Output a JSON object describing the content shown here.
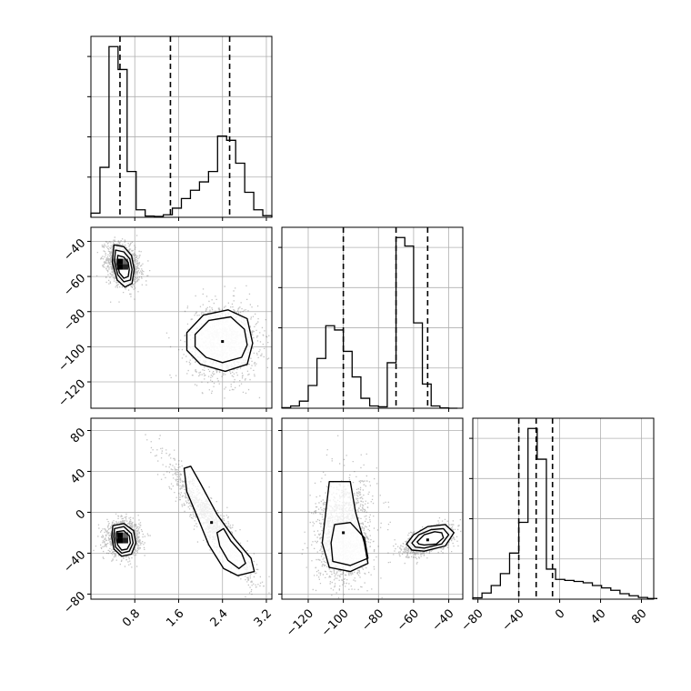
{
  "chart_data": {
    "type": "corner",
    "title": "",
    "parameter_labels": [
      "",
      "",
      ""
    ],
    "grid": true,
    "params": [
      {
        "range": [
          0.0,
          3.3
        ],
        "ticks": [
          0.8,
          1.6,
          2.4,
          3.2
        ],
        "tick_labels": [
          "0.8",
          "1.6",
          "2.4",
          "3.2"
        ],
        "quantiles": [
          0.53,
          1.45,
          2.53
        ],
        "hist": {
          "bin_edges": [
            0.0,
            0.165,
            0.33,
            0.495,
            0.66,
            0.825,
            0.99,
            1.155,
            1.32,
            1.485,
            1.65,
            1.815,
            1.98,
            2.145,
            2.31,
            2.475,
            2.64,
            2.805,
            2.97,
            3.135,
            3.3
          ],
          "counts": [
            10,
            120,
            410,
            355,
            110,
            18,
            3,
            2,
            6,
            22,
            45,
            65,
            85,
            110,
            195,
            185,
            130,
            60,
            18,
            4
          ]
        }
      },
      {
        "range": [
          -135,
          -32
        ],
        "ticks": [
          -120,
          -100,
          -80,
          -60,
          -40
        ],
        "tick_labels": [
          "−120",
          "−100",
          "−80",
          "−60",
          "−40"
        ],
        "quantiles": [
          -100,
          -70,
          -52
        ],
        "hist": {
          "bin_edges": [
            -135,
            -130,
            -125,
            -120,
            -115,
            -110,
            -105,
            -100,
            -95,
            -90,
            -85,
            -80,
            -75,
            -70,
            -65,
            -60,
            -55,
            -50,
            -45,
            -40,
            -35
          ],
          "counts": [
            2,
            8,
            25,
            80,
            175,
            290,
            275,
            200,
            110,
            35,
            8,
            5,
            160,
            600,
            570,
            300,
            85,
            8,
            1,
            0
          ]
        }
      },
      {
        "range": [
          -85,
          92
        ],
        "ticks": [
          -80,
          -40,
          0,
          40,
          80
        ],
        "tick_labels": [
          "−80",
          "−40",
          "0",
          "40",
          "80"
        ],
        "quantiles": [
          -40,
          -23,
          -7
        ],
        "hist": {
          "bin_edges": [
            -85,
            -76,
            -67,
            -58,
            -49,
            -40,
            -31,
            -22,
            -13,
            -4,
            5,
            14,
            23,
            32,
            41,
            50,
            59,
            68,
            77,
            86,
            95
          ],
          "counts": [
            4,
            18,
            40,
            75,
            135,
            225,
            500,
            410,
            88,
            58,
            55,
            52,
            48,
            40,
            33,
            26,
            16,
            10,
            5,
            2
          ]
        }
      }
    ],
    "pairs": [
      {
        "x_param": 0,
        "y_param": 1,
        "modes": [
          {
            "center": [
              0.58,
              -53
            ],
            "sd": [
              0.15,
              6
            ],
            "corr": -0.3,
            "weight": 0.55
          },
          {
            "center": [
              2.4,
              -97
            ],
            "sd": [
              0.32,
              11
            ],
            "corr": 0.0,
            "weight": 0.45
          }
        ],
        "contours": [
          [
            [
              0.42,
              -42
            ],
            [
              0.6,
              -43
            ],
            [
              0.74,
              -48
            ],
            [
              0.79,
              -56
            ],
            [
              0.75,
              -64
            ],
            [
              0.62,
              -66
            ],
            [
              0.48,
              -62
            ],
            [
              0.39,
              -52
            ]
          ],
          [
            [
              0.45,
              -45
            ],
            [
              0.6,
              -46
            ],
            [
              0.71,
              -50
            ],
            [
              0.75,
              -56
            ],
            [
              0.72,
              -62
            ],
            [
              0.6,
              -63
            ],
            [
              0.49,
              -59
            ],
            [
              0.43,
              -51
            ]
          ],
          [
            [
              0.49,
              -48
            ],
            [
              0.6,
              -49
            ],
            [
              0.68,
              -52
            ],
            [
              0.7,
              -56
            ],
            [
              0.68,
              -60
            ],
            [
              0.6,
              -61
            ],
            [
              0.52,
              -58
            ],
            [
              0.48,
              -53
            ]
          ],
          [
            [
              1.75,
              -92
            ],
            [
              2.05,
              -82
            ],
            [
              2.5,
              -79
            ],
            [
              2.85,
              -84
            ],
            [
              2.95,
              -98
            ],
            [
              2.85,
              -110
            ],
            [
              2.45,
              -114
            ],
            [
              2.0,
              -110
            ],
            [
              1.75,
              -102
            ]
          ],
          [
            [
              1.9,
              -93
            ],
            [
              2.15,
              -85
            ],
            [
              2.55,
              -83
            ],
            [
              2.8,
              -90
            ],
            [
              2.85,
              -99
            ],
            [
              2.75,
              -106
            ],
            [
              2.4,
              -109
            ],
            [
              2.1,
              -106
            ],
            [
              1.9,
              -100
            ]
          ]
        ]
      },
      {
        "x_param": 0,
        "y_param": 2,
        "modes": [
          {
            "center": [
              0.58,
              -25
            ],
            "sd": [
              0.15,
              8
            ],
            "corr": 0.0,
            "weight": 0.55
          },
          {
            "center": [
              2.2,
              -10
            ],
            "sd": [
              0.38,
              28
            ],
            "corr": -0.93,
            "weight": 0.45
          }
        ],
        "contours": [
          [
            [
              0.4,
              -13
            ],
            [
              0.6,
              -11
            ],
            [
              0.78,
              -18
            ],
            [
              0.82,
              -30
            ],
            [
              0.74,
              -41
            ],
            [
              0.56,
              -43
            ],
            [
              0.42,
              -36
            ],
            [
              0.38,
              -24
            ]
          ],
          [
            [
              0.43,
              -16
            ],
            [
              0.6,
              -14
            ],
            [
              0.74,
              -21
            ],
            [
              0.77,
              -30
            ],
            [
              0.7,
              -38
            ],
            [
              0.56,
              -40
            ],
            [
              0.45,
              -34
            ],
            [
              0.42,
              -24
            ]
          ],
          [
            [
              0.47,
              -19
            ],
            [
              0.6,
              -18
            ],
            [
              0.7,
              -23
            ],
            [
              0.72,
              -30
            ],
            [
              0.66,
              -36
            ],
            [
              0.56,
              -37
            ],
            [
              0.49,
              -32
            ],
            [
              0.46,
              -25
            ]
          ],
          [
            [
              1.7,
              43
            ],
            [
              1.82,
              45
            ],
            [
              2.0,
              28
            ],
            [
              2.3,
              -2
            ],
            [
              2.62,
              -26
            ],
            [
              2.92,
              -45
            ],
            [
              2.98,
              -58
            ],
            [
              2.68,
              -62
            ],
            [
              2.42,
              -55
            ],
            [
              2.15,
              -32
            ],
            [
              1.93,
              -3
            ],
            [
              1.75,
              20
            ]
          ],
          [
            [
              2.3,
              -20
            ],
            [
              2.42,
              -16
            ],
            [
              2.55,
              -28
            ],
            [
              2.75,
              -40
            ],
            [
              2.82,
              -50
            ],
            [
              2.7,
              -55
            ],
            [
              2.5,
              -47
            ],
            [
              2.35,
              -33
            ]
          ]
        ]
      },
      {
        "x_param": 1,
        "y_param": 2,
        "modes": [
          {
            "center": [
              -100,
              -20
            ],
            "sd": [
              8,
              26
            ],
            "corr": 0.15,
            "weight": 0.55
          },
          {
            "center": [
              -52,
              -27
            ],
            "sd": [
              7,
              7
            ],
            "corr": 0.55,
            "weight": 0.45
          }
        ],
        "contours": [
          [
            [
              -108,
              30
            ],
            [
              -96,
              30
            ],
            [
              -93,
              0
            ],
            [
              -88,
              -30
            ],
            [
              -86,
              -50
            ],
            [
              -96,
              -58
            ],
            [
              -108,
              -54
            ],
            [
              -112,
              -30
            ],
            [
              -110,
              0
            ]
          ],
          [
            [
              -105,
              -12
            ],
            [
              -96,
              -10
            ],
            [
              -88,
              -25
            ],
            [
              -86,
              -45
            ],
            [
              -96,
              -52
            ],
            [
              -106,
              -48
            ],
            [
              -107,
              -30
            ]
          ],
          [
            [
              -64,
              -31
            ],
            [
              -60,
              -22
            ],
            [
              -52,
              -14
            ],
            [
              -42,
              -12
            ],
            [
              -37,
              -20
            ],
            [
              -42,
              -33
            ],
            [
              -54,
              -38
            ],
            [
              -61,
              -37
            ]
          ],
          [
            [
              -61,
              -30
            ],
            [
              -57,
              -22
            ],
            [
              -50,
              -17
            ],
            [
              -43,
              -16
            ],
            [
              -40,
              -22
            ],
            [
              -44,
              -31
            ],
            [
              -54,
              -35
            ],
            [
              -59,
              -34
            ]
          ],
          [
            [
              -58,
              -29
            ],
            [
              -54,
              -22
            ],
            [
              -48,
              -19
            ],
            [
              -44,
              -20
            ],
            [
              -43,
              -25
            ],
            [
              -47,
              -31
            ],
            [
              -54,
              -32
            ],
            [
              -57,
              -31
            ]
          ]
        ]
      }
    ]
  }
}
